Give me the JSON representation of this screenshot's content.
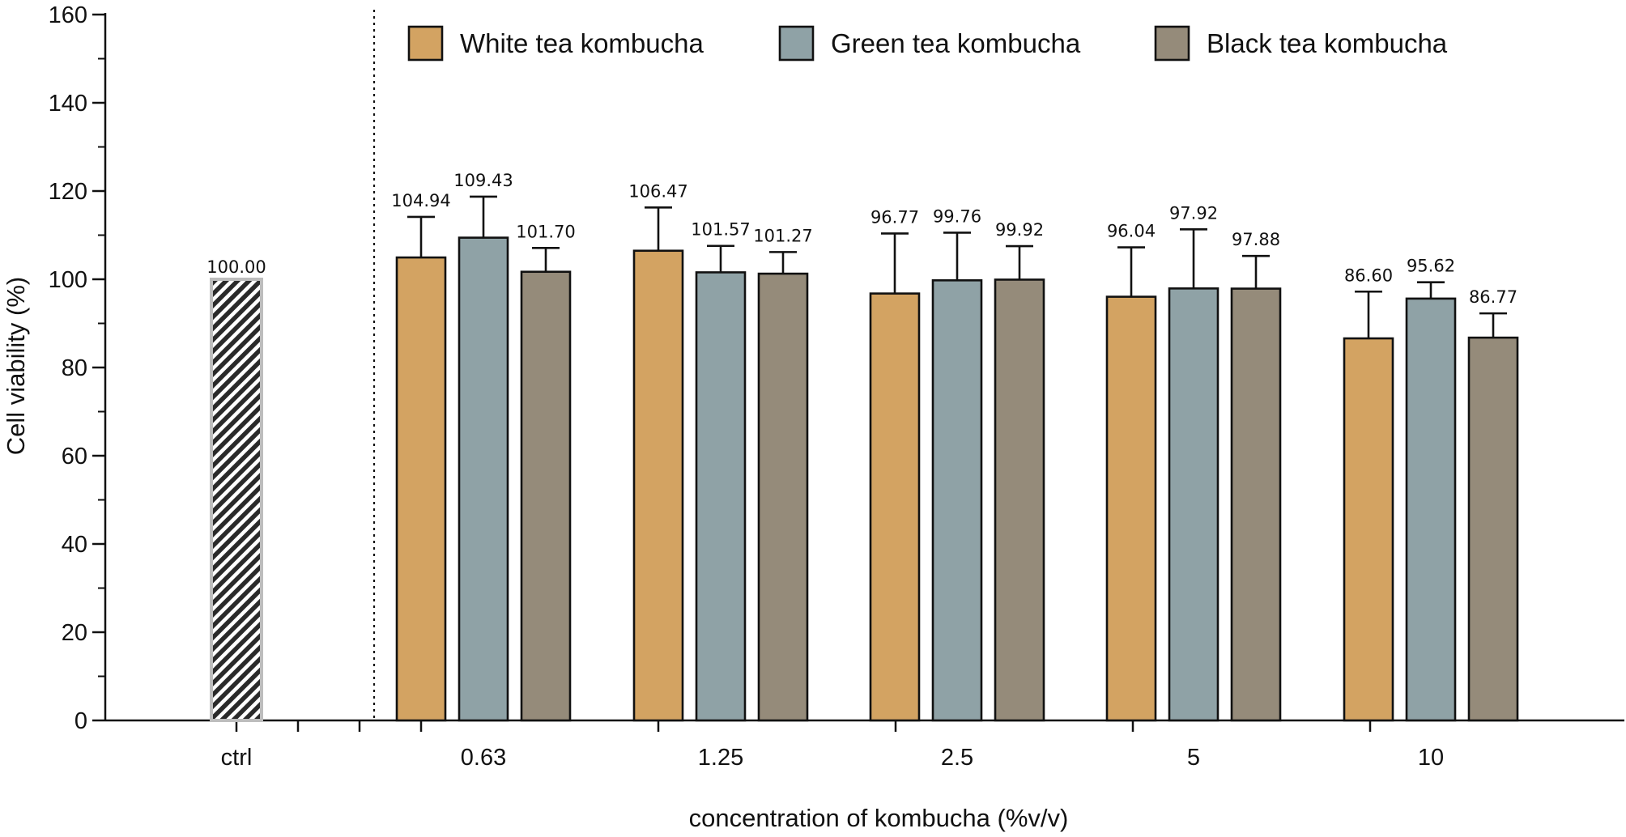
{
  "chart_data": {
    "type": "bar",
    "title": "",
    "xlabel": "concentration of kombucha  (%v/v)",
    "ylabel": "Cell viability (%)",
    "ylim": [
      0,
      160
    ],
    "yticks": [
      0,
      20,
      40,
      60,
      80,
      100,
      120,
      140,
      160
    ],
    "grid": false,
    "legend_position": "top",
    "control": {
      "category": "ctrl",
      "value": 100.0,
      "label": "100.00",
      "pattern": "hatched",
      "color": "#bdbdbd"
    },
    "categories": [
      "0.63",
      "1.25",
      "2.5",
      "5",
      "10"
    ],
    "series": [
      {
        "name": "White tea kombucha",
        "color": "#d3a362",
        "values": [
          104.94,
          106.47,
          96.77,
          96.04,
          86.6
        ],
        "labels": [
          "104.94",
          "106.47",
          "96.77",
          "96.04",
          "86.60"
        ],
        "errors": [
          9.2,
          9.8,
          13.6,
          11.2,
          10.6
        ]
      },
      {
        "name": "Green tea kombucha",
        "color": "#8fa2a6",
        "values": [
          109.43,
          101.57,
          99.76,
          97.92,
          95.62
        ],
        "labels": [
          "109.43",
          "101.57",
          "99.76",
          "97.92",
          "95.62"
        ],
        "errors": [
          9.3,
          6.0,
          10.8,
          13.4,
          3.7
        ]
      },
      {
        "name": "Black tea kombucha",
        "color": "#958b7a",
        "values": [
          101.7,
          101.27,
          99.92,
          97.88,
          86.77
        ],
        "labels": [
          "101.70",
          "101.27",
          "99.92",
          "97.88",
          "86.77"
        ],
        "errors": [
          5.4,
          4.9,
          7.6,
          7.4,
          5.5
        ]
      }
    ]
  }
}
